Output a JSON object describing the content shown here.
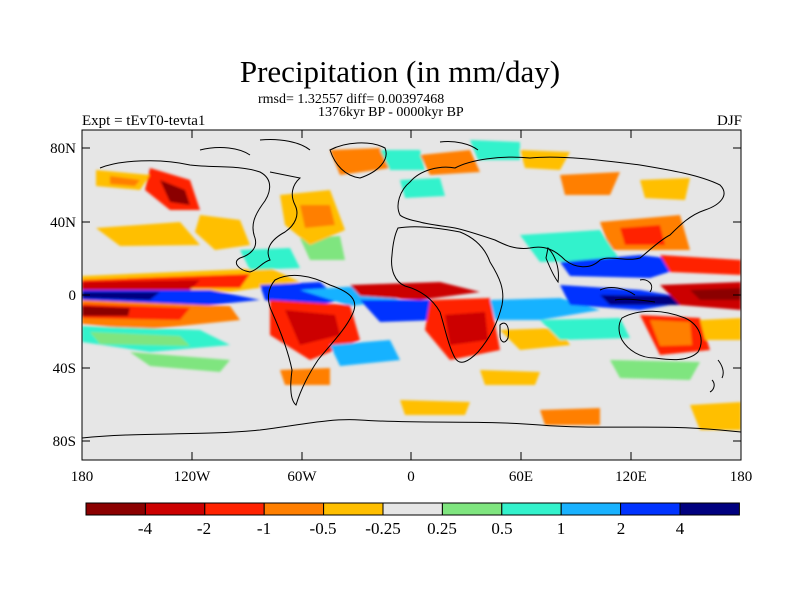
{
  "header": {
    "title": "Precipitation (in mm/day)",
    "stats": "rmsd= 1.32557 diff= 0.00397468",
    "period": "1376kyr BP - 0000kyr BP",
    "experiment": "Expt = tEvT0-tevta1",
    "season": "DJF"
  },
  "axes": {
    "lat_labels": [
      "80N",
      "40N",
      "0",
      "40S",
      "80S"
    ],
    "lon_labels": [
      "180",
      "120W",
      "60W",
      "0",
      "60E",
      "120E",
      "180"
    ]
  },
  "colorbar": {
    "labels": [
      "-4",
      "-2",
      "-1",
      "-0.5",
      "-0.25",
      "0.25",
      "0.5",
      "1",
      "2",
      "4"
    ],
    "colors": [
      "#8b0000",
      "#cc0000",
      "#ff2200",
      "#ff7f00",
      "#ffbf00",
      "#e6e6e6",
      "#7fe57f",
      "#33f2cc",
      "#19b2ff",
      "#0033ff",
      "#00007f"
    ]
  },
  "colors": {
    "land_outline": "#000000",
    "neutral": "#e6e6e6"
  }
}
